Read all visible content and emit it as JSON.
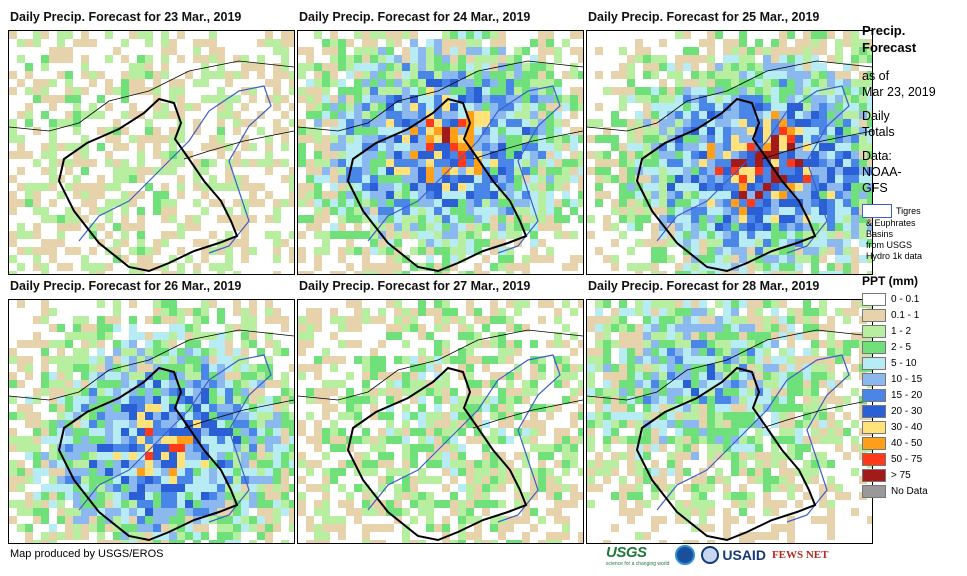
{
  "panels": [
    {
      "title": "Daily Precip. Forecast for 23 Mar., 2019",
      "intensity": 0.05
    },
    {
      "title": "Daily Precip. Forecast for 24 Mar., 2019",
      "intensity": 0.75
    },
    {
      "title": "Daily Precip. Forecast for 25 Mar., 2019",
      "intensity": 0.85
    },
    {
      "title": "Daily Precip. Forecast for 26 Mar., 2019",
      "intensity": 0.7
    },
    {
      "title": "Daily Precip. Forecast for 27 Mar., 2019",
      "intensity": 0.2
    },
    {
      "title": "Daily Precip. Forecast for 28 Mar., 2019",
      "intensity": 0.45
    }
  ],
  "legend": {
    "title_line1": "Precip.",
    "title_line2": "Forecast",
    "asof_line1": "as of",
    "asof_line2": "Mar 23, 2019",
    "totals_line1": "Daily",
    "totals_line2": "Totals",
    "data_line1": "Data:",
    "data_line2": "NOAA-",
    "data_line3": "GFS",
    "basin_line1": "Tigres",
    "basin_line2": "& Euphrates",
    "basin_line3": "Basins",
    "basin_line4": "from USGS",
    "basin_line5": "Hydro 1k data",
    "ppt_title": "PPT (mm)",
    "classes": [
      {
        "label": "0 - 0.1",
        "color": "#ffffff"
      },
      {
        "label": "0.1 - 1",
        "color": "#e6d3ac"
      },
      {
        "label": "1 - 2",
        "color": "#b7eea0"
      },
      {
        "label": "2 - 5",
        "color": "#6fe07a"
      },
      {
        "label": "5 - 10",
        "color": "#b8ecf4"
      },
      {
        "label": "10 - 15",
        "color": "#8ab8ef"
      },
      {
        "label": "15 - 20",
        "color": "#4a86e8"
      },
      {
        "label": "20 - 30",
        "color": "#2a5fd6"
      },
      {
        "label": "30 - 40",
        "color": "#ffe27a"
      },
      {
        "label": "40 - 50",
        "color": "#ff9f1a"
      },
      {
        "label": "50 - 75",
        "color": "#ff3a1a"
      },
      {
        "label": "> 75",
        "color": "#a31a1a"
      },
      {
        "label": "No Data",
        "color": "#999999"
      }
    ]
  },
  "footer": {
    "credit": "Map produced by USGS/EROS",
    "usgs": "USGS",
    "usgs_tag": "science for a changing world",
    "usaid": "USAID",
    "fews": "FEWS NET"
  }
}
